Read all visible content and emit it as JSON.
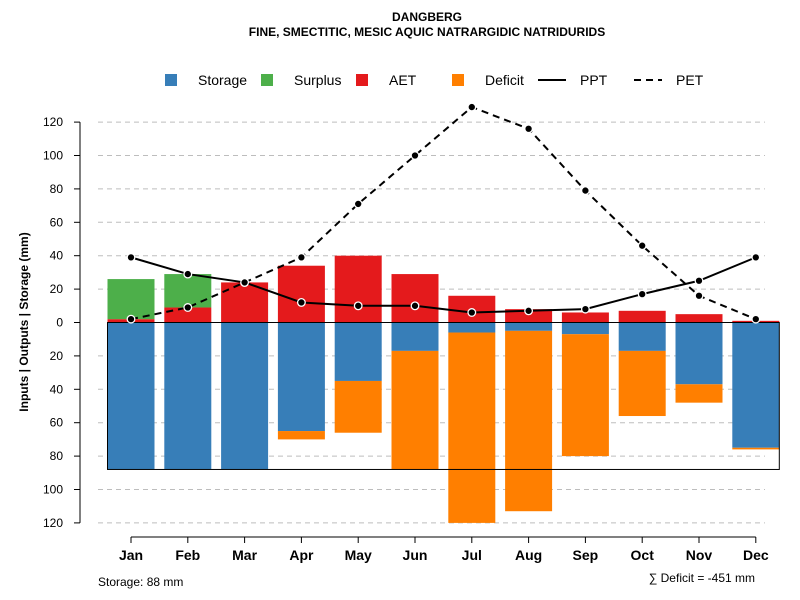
{
  "chart_data": {
    "type": "bar",
    "title": "DANGBERG",
    "subtitle": "FINE, SMECTITIC, MESIC AQUIC NATRARGIDIC NATRIDURIDS",
    "ylabel": "Inputs | Outputs | Storage    (mm)",
    "ylim": [
      -120,
      130
    ],
    "yticks": [
      -120,
      -100,
      -80,
      -60,
      -40,
      -20,
      0,
      20,
      40,
      60,
      80,
      100,
      120
    ],
    "ytick_labels": [
      "120",
      "100",
      "80",
      "60",
      "40",
      "20",
      "0",
      "20",
      "40",
      "60",
      "80",
      "100",
      "120"
    ],
    "categories": [
      "Jan",
      "Feb",
      "Mar",
      "Apr",
      "May",
      "Jun",
      "Jul",
      "Aug",
      "Sep",
      "Oct",
      "Nov",
      "Dec"
    ],
    "storage_capacity": 88,
    "legend": [
      {
        "label": "Storage",
        "kind": "box",
        "color": "#377EB8"
      },
      {
        "label": "Surplus",
        "kind": "box",
        "color": "#4DAF4A"
      },
      {
        "label": "AET",
        "kind": "box",
        "color": "#E41A1C"
      },
      {
        "label": "Deficit",
        "kind": "box",
        "color": "#FF7F00"
      },
      {
        "label": "PPT",
        "kind": "solid",
        "color": "#000000"
      },
      {
        "label": "PET",
        "kind": "dashed",
        "color": "#000000"
      }
    ],
    "series": [
      {
        "name": "AET",
        "color": "#E41A1C",
        "values": [
          2,
          9,
          24,
          34,
          40,
          29,
          16,
          8,
          6,
          7,
          5,
          1
        ]
      },
      {
        "name": "Surplus",
        "color": "#4DAF4A",
        "values": [
          24,
          20,
          0,
          0,
          0,
          0,
          0,
          0,
          0,
          0,
          0,
          0
        ]
      },
      {
        "name": "Storage",
        "color": "#377EB8",
        "values": [
          88,
          88,
          88,
          65,
          35,
          17,
          6,
          5,
          7,
          17,
          37,
          75
        ]
      },
      {
        "name": "Deficit",
        "color": "#FF7F00",
        "values": [
          0,
          0,
          0,
          5,
          31,
          71,
          114,
          108,
          73,
          39,
          11,
          1
        ]
      },
      {
        "name": "PPT",
        "color": "#000000",
        "values": [
          39,
          29,
          24,
          12,
          10,
          10,
          6,
          7,
          8,
          17,
          25,
          39
        ]
      },
      {
        "name": "PET",
        "color": "#000000",
        "values": [
          2,
          9,
          24,
          39,
          71,
          100,
          129,
          116,
          79,
          46,
          16,
          2
        ]
      }
    ],
    "storage_note": "Storage: 88 mm",
    "deficit_note": "∑ Deficit = -451 mm"
  }
}
